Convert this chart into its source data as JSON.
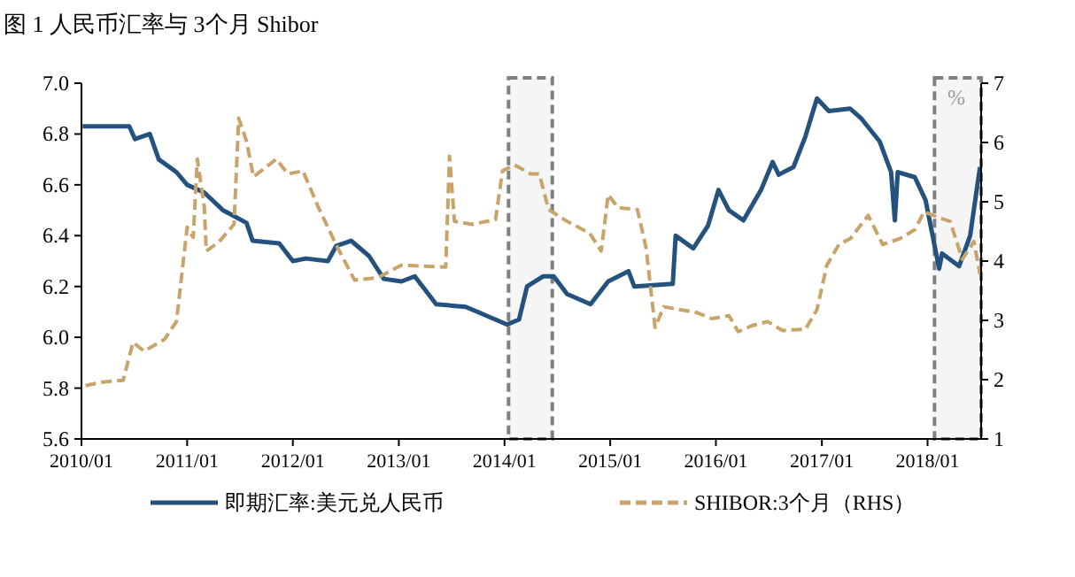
{
  "chart_data": {
    "type": "line",
    "title": "图 1  人民币汇率与 3个月 Shibor",
    "y2label": "%",
    "xlim": [
      "2010-01-01",
      "2018-07-05"
    ],
    "xticks": [
      {
        "value": "2010-01-01",
        "label": "2010/01"
      },
      {
        "value": "2011-01-01",
        "label": "2011/01"
      },
      {
        "value": "2012-01-01",
        "label": "2012/01"
      },
      {
        "value": "2013-01-01",
        "label": "2013/01"
      },
      {
        "value": "2014-01-01",
        "label": "2014/01"
      },
      {
        "value": "2015-01-01",
        "label": "2015/01"
      },
      {
        "value": "2016-01-01",
        "label": "2016/01"
      },
      {
        "value": "2017-01-01",
        "label": "2017/01"
      },
      {
        "value": "2018-01-01",
        "label": "2018/01"
      }
    ],
    "ylim": [
      5.6,
      7.0
    ],
    "yticks": [
      {
        "value": 5.6,
        "label": "5.6"
      },
      {
        "value": 5.8,
        "label": "5.8"
      },
      {
        "value": 6.0,
        "label": "6.0"
      },
      {
        "value": 6.2,
        "label": "6.2"
      },
      {
        "value": 6.4,
        "label": "6.4"
      },
      {
        "value": 6.6,
        "label": "6.6"
      },
      {
        "value": 6.8,
        "label": "6.8"
      },
      {
        "value": 7.0,
        "label": "7.0"
      }
    ],
    "y2lim": [
      1,
      7
    ],
    "y2ticks": [
      1,
      2,
      3,
      4,
      5,
      6,
      7
    ],
    "grid": false,
    "legend": "bottom",
    "bands": [
      {
        "axis": "x",
        "from": "2014-01-15",
        "to": "2014-06-15",
        "color": "#808080"
      },
      {
        "axis": "x",
        "from": "2018-01-25",
        "to": "2018-07-05",
        "color": "#808080"
      }
    ],
    "series": [
      {
        "name": "即期汇率:美元兑人民币",
        "color": "#24527e",
        "line_style": "solid",
        "x": [
          "2010-01-05",
          "2010-06-15",
          "2010-07-05",
          "2010-08-25",
          "2010-09-25",
          "2010-11-25",
          "2011-01-01",
          "2011-03-01",
          "2011-05-05",
          "2011-07-25",
          "2011-08-15",
          "2011-11-15",
          "2012-01-01",
          "2012-02-15",
          "2012-05-01",
          "2012-05-30",
          "2012-07-20",
          "2012-09-20",
          "2012-11-10",
          "2013-01-10",
          "2013-02-25",
          "2013-05-10",
          "2013-08-20",
          "2013-10-20",
          "2014-01-10",
          "2014-02-20",
          "2014-03-20",
          "2014-05-15",
          "2014-06-20",
          "2014-08-05",
          "2014-10-25",
          "2014-12-25",
          "2015-03-05",
          "2015-03-25",
          "2015-08-05",
          "2015-08-15",
          "2015-10-15",
          "2015-12-05",
          "2016-01-10",
          "2016-02-15",
          "2016-04-05",
          "2016-06-05",
          "2016-07-15",
          "2016-08-05",
          "2016-09-25",
          "2016-11-05",
          "2016-12-15",
          "2017-01-25",
          "2017-04-08",
          "2017-05-18",
          "2017-07-20",
          "2017-08-28",
          "2017-09-10",
          "2017-09-20",
          "2017-11-18",
          "2017-12-25",
          "2018-02-10",
          "2018-02-20",
          "2018-04-20",
          "2018-05-28",
          "2018-07-01"
        ],
        "values": [
          6.83,
          6.83,
          6.78,
          6.8,
          6.7,
          6.65,
          6.6,
          6.57,
          6.5,
          6.45,
          6.38,
          6.37,
          6.3,
          6.31,
          6.3,
          6.36,
          6.38,
          6.32,
          6.23,
          6.22,
          6.24,
          6.13,
          6.12,
          6.09,
          6.05,
          6.07,
          6.2,
          6.24,
          6.24,
          6.17,
          6.13,
          6.22,
          6.26,
          6.2,
          6.21,
          6.4,
          6.35,
          6.44,
          6.58,
          6.5,
          6.46,
          6.58,
          6.69,
          6.64,
          6.67,
          6.79,
          6.94,
          6.89,
          6.9,
          6.86,
          6.77,
          6.65,
          6.46,
          6.65,
          6.63,
          6.54,
          6.27,
          6.33,
          6.28,
          6.4,
          6.67
        ]
      },
      {
        "name": "SHIBOR:3个月（RHS）",
        "color": "#c9a46a",
        "axis": "y2",
        "line_style": "dashed",
        "x": [
          "2010-01-15",
          "2010-03-15",
          "2010-05-25",
          "2010-06-28",
          "2010-08-05",
          "2010-10-15",
          "2010-11-25",
          "2011-01-01",
          "2011-01-22",
          "2011-02-05",
          "2011-03-01",
          "2011-03-08",
          "2011-04-20",
          "2011-06-12",
          "2011-06-28",
          "2011-07-25",
          "2011-08-18",
          "2011-11-05",
          "2011-12-15",
          "2012-02-05",
          "2012-03-28",
          "2012-05-30",
          "2012-08-01",
          "2012-10-20",
          "2013-01-10",
          "2013-06-12",
          "2013-06-25",
          "2013-07-12",
          "2013-09-10",
          "2013-12-01",
          "2013-12-25",
          "2014-02-05",
          "2014-04-01",
          "2014-05-01",
          "2014-06-02",
          "2014-08-05",
          "2014-10-22",
          "2014-12-01",
          "2014-12-25",
          "2015-01-28",
          "2015-04-05",
          "2015-05-05",
          "2015-06-05",
          "2015-07-05",
          "2015-10-28",
          "2015-12-18",
          "2016-02-15",
          "2016-03-18",
          "2016-05-05",
          "2016-06-28",
          "2016-08-18",
          "2016-11-05",
          "2016-12-15",
          "2017-01-18",
          "2017-03-01",
          "2017-04-10",
          "2017-06-10",
          "2017-07-30",
          "2017-09-28",
          "2017-11-18",
          "2017-12-20",
          "2018-02-10",
          "2018-03-20",
          "2018-05-01",
          "2018-06-10",
          "2018-07-01"
        ],
        "values": [
          1.9,
          1.96,
          1.99,
          2.63,
          2.48,
          2.68,
          2.98,
          4.57,
          4.4,
          5.72,
          4.92,
          4.17,
          4.32,
          4.62,
          6.41,
          6.02,
          5.42,
          5.72,
          5.47,
          5.52,
          4.92,
          4.27,
          3.68,
          3.72,
          3.93,
          3.9,
          5.77,
          4.67,
          4.62,
          4.7,
          5.52,
          5.62,
          5.47,
          5.47,
          4.87,
          4.67,
          4.47,
          4.17,
          5.12,
          4.9,
          4.87,
          4.22,
          2.88,
          3.23,
          3.13,
          3.03,
          3.08,
          2.81,
          2.91,
          2.98,
          2.83,
          2.85,
          3.18,
          3.93,
          4.28,
          4.38,
          4.77,
          4.28,
          4.38,
          4.53,
          4.83,
          4.73,
          4.67,
          4.03,
          4.33,
          3.78
        ]
      }
    ]
  }
}
